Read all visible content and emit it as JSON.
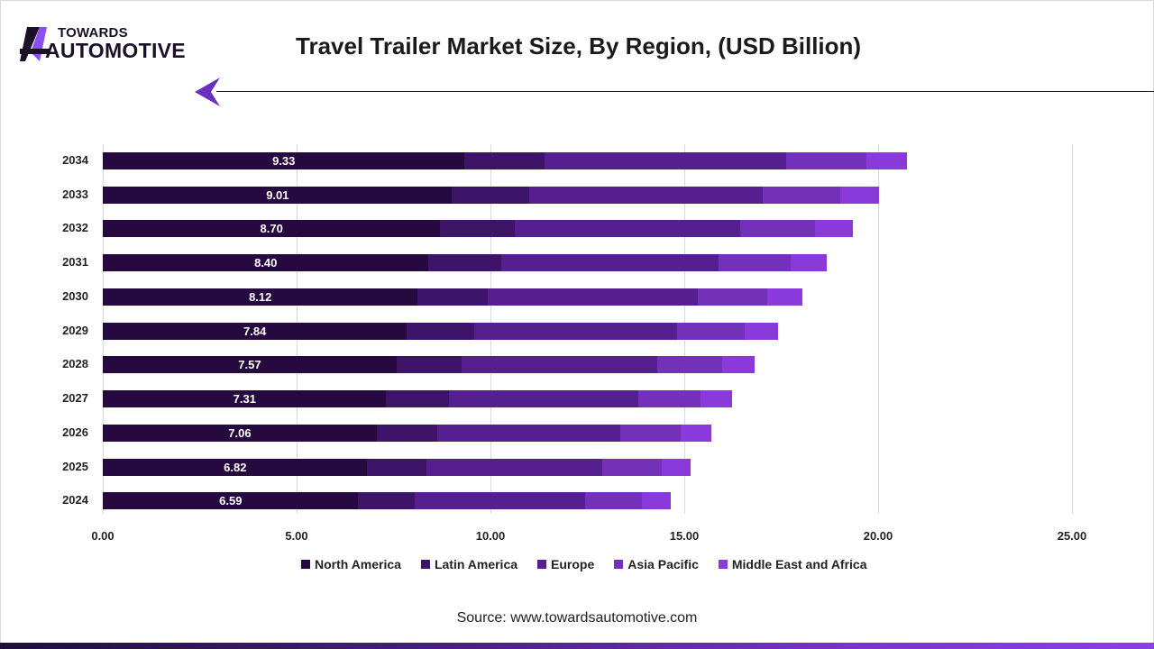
{
  "logo": {
    "line1": "TOWARDS",
    "line2": "AUTOMOTIVE"
  },
  "header": {
    "title": "Travel Trailer Market Size, By Region, (USD Billion)"
  },
  "footer": {
    "source": "Source: www.towardsautomotive.com"
  },
  "colors": {
    "north_america": "#25093f",
    "latin_america": "#3d1468",
    "europe": "#561f8f",
    "asia_pacific": "#7330b8",
    "middle_east_africa": "#8a3adb",
    "accent": "#7b35d0"
  },
  "legend": [
    {
      "label": "North America",
      "color": "#25093f"
    },
    {
      "label": "Latin America",
      "color": "#3d1468"
    },
    {
      "label": "Europe",
      "color": "#561f8f"
    },
    {
      "label": "Asia Pacific",
      "color": "#7330b8"
    },
    {
      "label": "Middle East and Africa",
      "color": "#8a3adb"
    }
  ],
  "chart_data": {
    "type": "bar",
    "orientation": "horizontal",
    "stacked": true,
    "title": "Travel Trailer Market Size, By Region, (USD Billion)",
    "xlabel": "",
    "ylabel": "",
    "xlim": [
      0,
      25
    ],
    "xticks": [
      "0.00",
      "5.00",
      "10.00",
      "15.00",
      "20.00",
      "25.00"
    ],
    "grid": true,
    "legend_position": "bottom",
    "categories": [
      "2034",
      "2033",
      "2032",
      "2031",
      "2030",
      "2029",
      "2028",
      "2027",
      "2026",
      "2025",
      "2024"
    ],
    "series": [
      {
        "name": "North America",
        "values": [
          9.33,
          9.01,
          8.7,
          8.4,
          8.12,
          7.84,
          7.57,
          7.31,
          7.06,
          6.82,
          6.59
        ]
      },
      {
        "name": "Latin America",
        "values": [
          2.07,
          2.0,
          1.93,
          1.87,
          1.8,
          1.74,
          1.68,
          1.62,
          1.57,
          1.52,
          1.46
        ]
      },
      {
        "name": "Europe",
        "values": [
          6.23,
          6.02,
          5.82,
          5.61,
          5.42,
          5.23,
          5.05,
          4.88,
          4.71,
          4.55,
          4.39
        ]
      },
      {
        "name": "Asia Pacific",
        "values": [
          2.07,
          2.0,
          1.93,
          1.87,
          1.8,
          1.74,
          1.68,
          1.62,
          1.57,
          1.52,
          1.47
        ]
      },
      {
        "name": "Middle East and Africa",
        "values": [
          1.04,
          1.0,
          0.97,
          0.93,
          0.9,
          0.87,
          0.84,
          0.81,
          0.78,
          0.76,
          0.74
        ]
      }
    ],
    "data_labels": {
      "series": "North America",
      "values": [
        "9.33",
        "9.01",
        "8.70",
        "8.40",
        "8.12",
        "7.84",
        "7.57",
        "7.31",
        "7.06",
        "6.82",
        "6.59"
      ]
    }
  }
}
